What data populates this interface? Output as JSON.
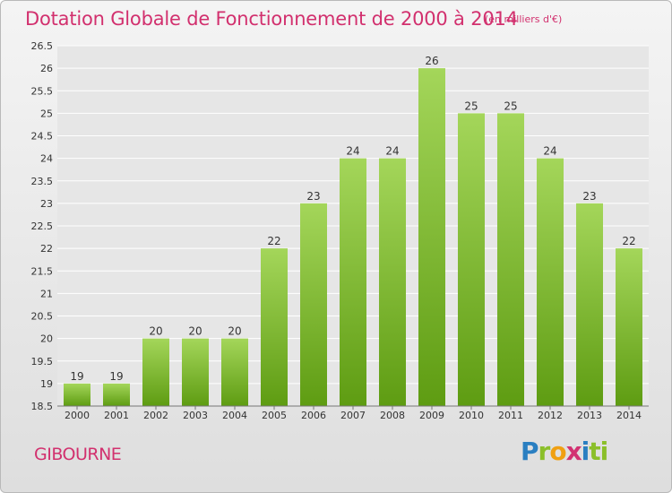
{
  "chart_data": {
    "type": "bar",
    "title": "Dotation Globale de Fonctionnement de 2000 à 2014",
    "subtitle": "(en milliers d'€)",
    "categories": [
      "2000",
      "2001",
      "2002",
      "2003",
      "2004",
      "2005",
      "2006",
      "2007",
      "2008",
      "2009",
      "2010",
      "2011",
      "2012",
      "2013",
      "2014"
    ],
    "values": [
      19,
      19,
      20,
      20,
      20,
      22,
      23,
      24,
      24,
      26,
      25,
      25,
      24,
      23,
      22
    ],
    "xlabel": "",
    "ylabel": "",
    "ylim": [
      18.5,
      26.5
    ],
    "yticks": [
      "18.5",
      "19",
      "19.5",
      "20",
      "20.5",
      "21",
      "21.5",
      "22",
      "22.5",
      "23",
      "23.5",
      "24",
      "24.5",
      "25",
      "25.5",
      "26",
      "26.5"
    ],
    "grid": true,
    "legend": "none",
    "colors": {
      "bar_light": "#a4d65a",
      "bar_dark": "#5e9c12",
      "text_accent": "#d2306e",
      "grid": "#ffffff"
    }
  },
  "footer": {
    "commune": "GIBOURNE",
    "logo_letters": [
      "P",
      "r",
      "o",
      "x",
      "i",
      "ti"
    ]
  }
}
